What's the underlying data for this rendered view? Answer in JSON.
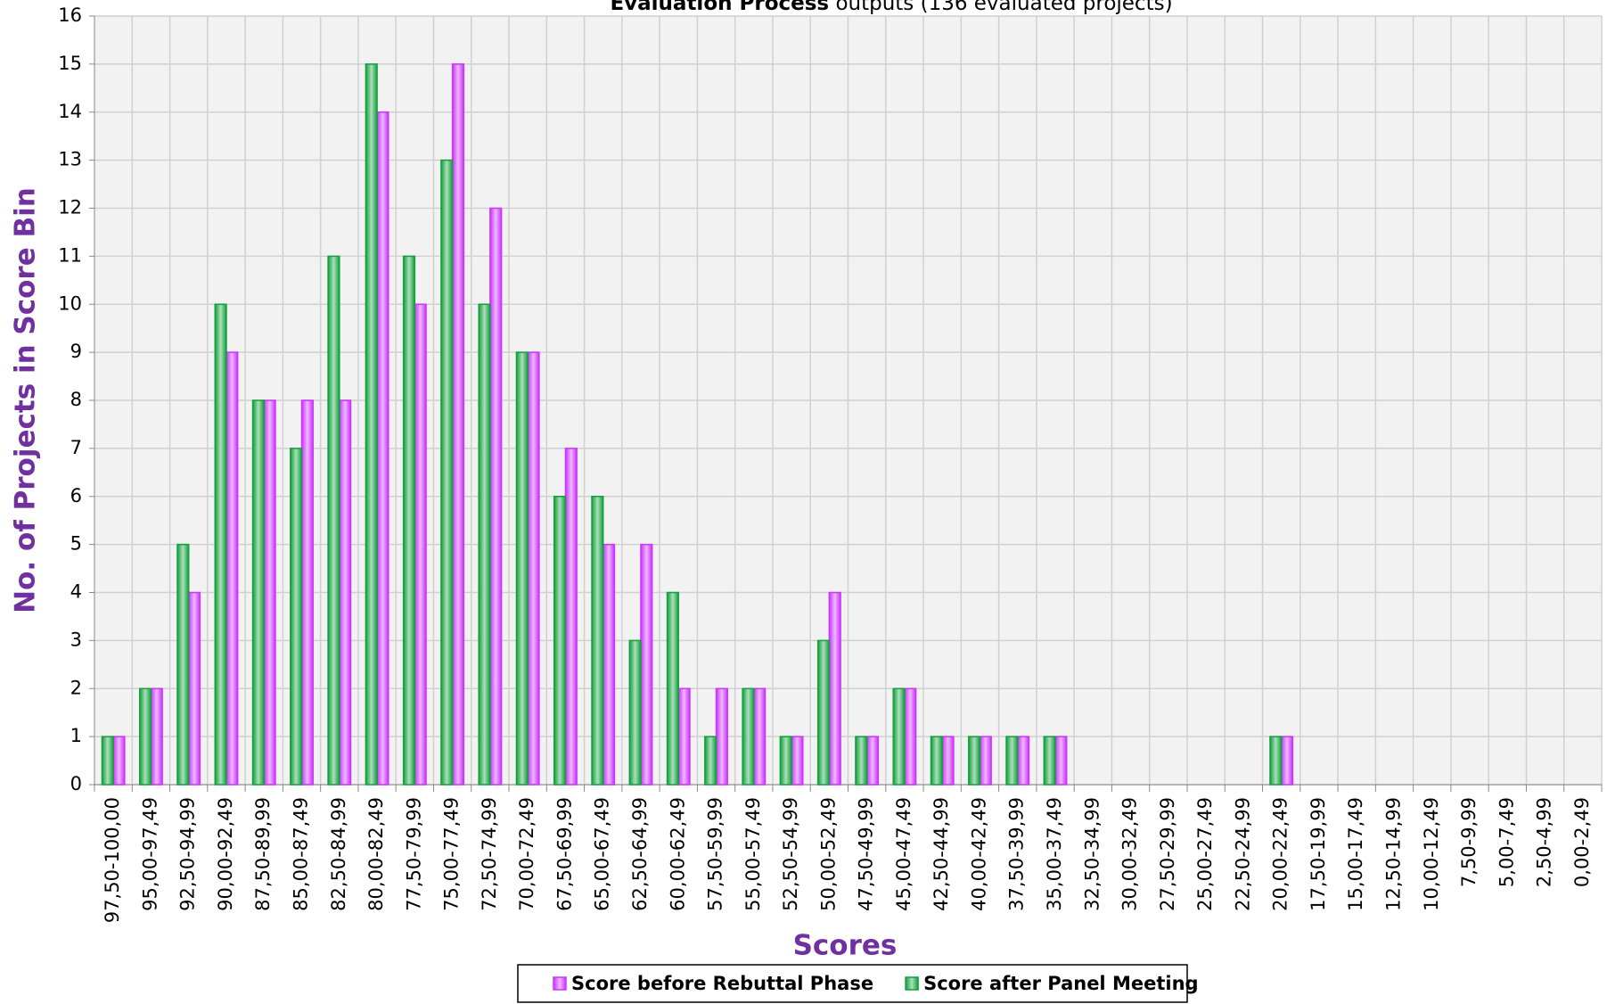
{
  "chart_data": {
    "type": "bar",
    "title": {
      "bold": "Evaluation Process",
      "rest": "outputs (136 evaluated projects)"
    },
    "x_label": "Scores",
    "y_label": "No. of Projects in Score Bin",
    "categories": [
      "97,50-100,00",
      "95,00-97,49",
      "92,50-94,99",
      "90,00-92,49",
      "87,50-89,99",
      "85,00-87,49",
      "82,50-84,99",
      "80,00-82,49",
      "77,50-79,99",
      "75,00-77,49",
      "72,50-74,99",
      "70,00-72,49",
      "67,50-69,99",
      "65,00-67,49",
      "62,50-64,99",
      "60,00-62,49",
      "57,50-59,99",
      "55,00-57,49",
      "52,50-54,99",
      "50,00-52,49",
      "47,50-49,99",
      "45,00-47,49",
      "42,50-44,99",
      "40,00-42,49",
      "37,50-39,99",
      "35,00-37,49",
      "32,50-34,99",
      "30,00-32,49",
      "27,50-29,99",
      "25,00-27,49",
      "22,50-24,99",
      "20,00-22,49",
      "17,50-19,99",
      "15,00-17,49",
      "12,50-14,99",
      "10,00-12,49",
      "7,50-9,99",
      "5,00-7,49",
      "2,50-4,99",
      "0,00-2,49"
    ],
    "series": [
      {
        "name": "Score before Rebuttal Phase",
        "color": "#cc33ff",
        "values": [
          1,
          2,
          4,
          9,
          8,
          8,
          8,
          14,
          10,
          15,
          12,
          9,
          7,
          5,
          5,
          2,
          2,
          2,
          1,
          4,
          1,
          2,
          1,
          1,
          1,
          1,
          0,
          0,
          0,
          0,
          0,
          1,
          0,
          0,
          0,
          0,
          0,
          0,
          0,
          0
        ]
      },
      {
        "name": "Score after Panel Meeting",
        "color": "#12a03c",
        "values": [
          1,
          2,
          5,
          10,
          8,
          7,
          11,
          15,
          11,
          13,
          10,
          9,
          6,
          6,
          3,
          4,
          1,
          2,
          1,
          3,
          1,
          2,
          1,
          1,
          1,
          1,
          0,
          0,
          0,
          0,
          0,
          1,
          0,
          0,
          0,
          0,
          0,
          0,
          0,
          0
        ]
      }
    ],
    "ylim": [
      0,
      16
    ],
    "yticks": [
      0,
      1,
      2,
      3,
      4,
      5,
      6,
      7,
      8,
      9,
      10,
      11,
      12,
      13,
      14,
      15,
      16
    ],
    "grid": true,
    "legend": "bottom"
  }
}
